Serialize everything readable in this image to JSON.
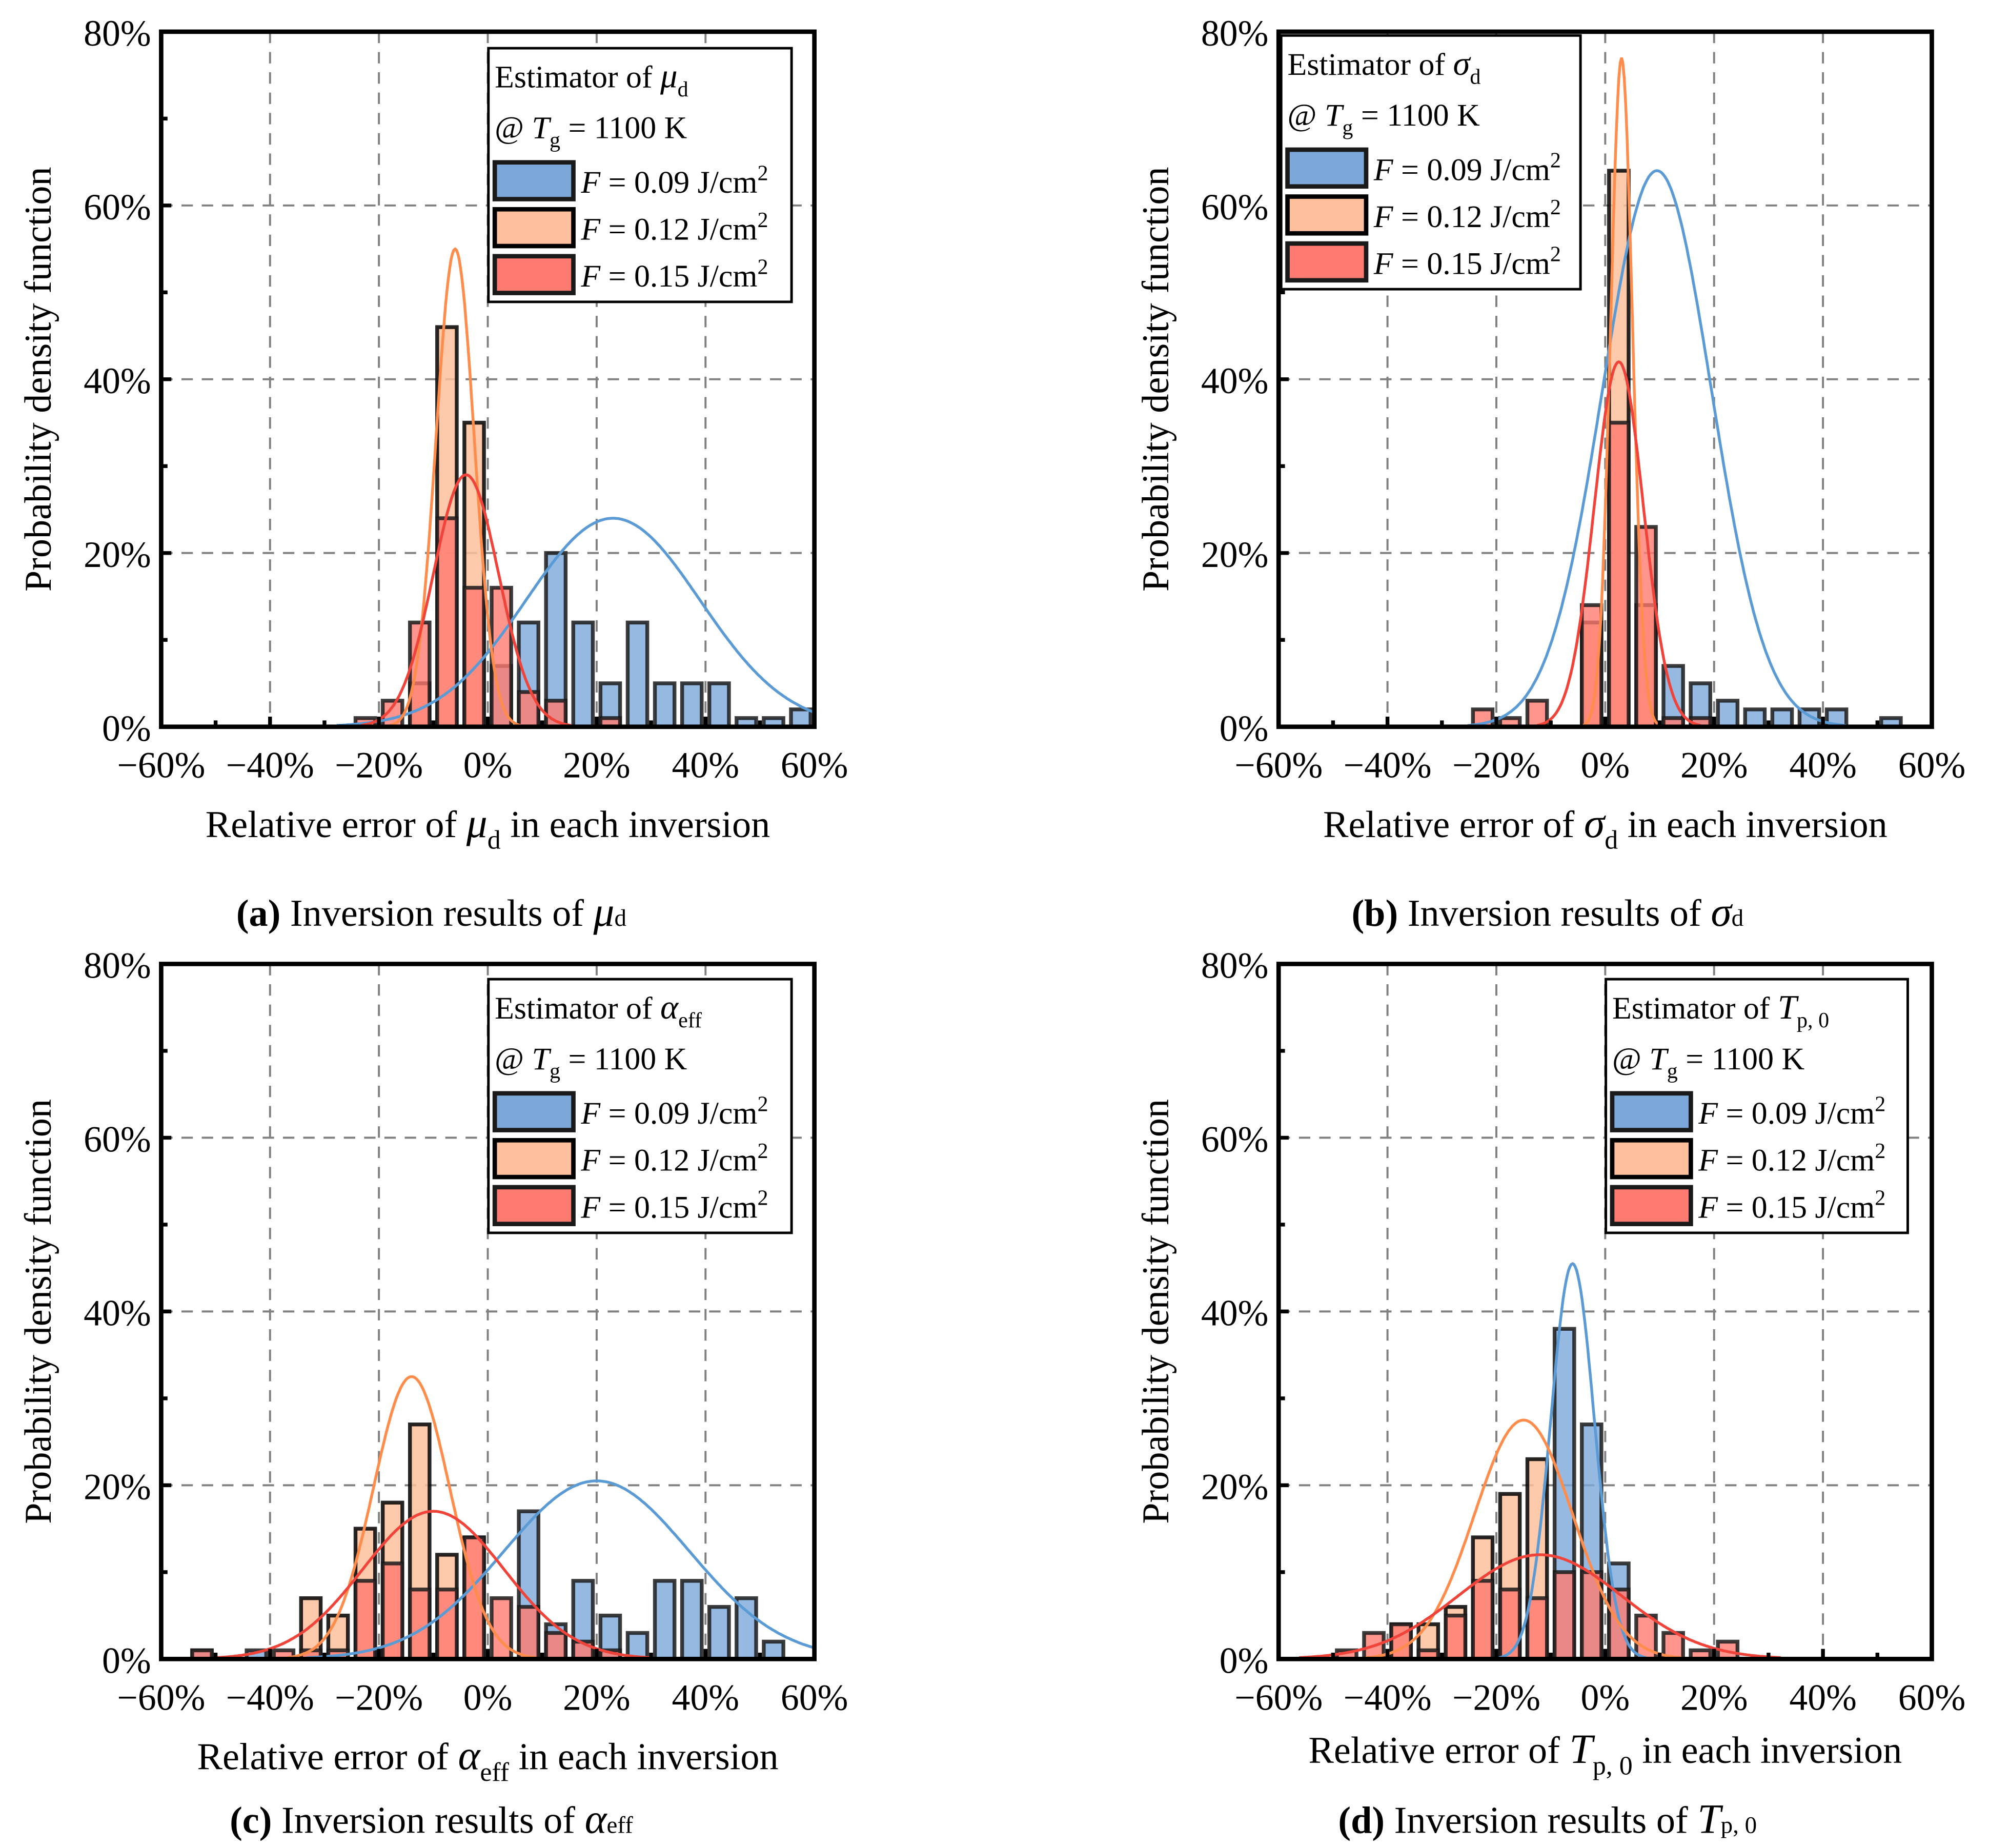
{
  "chart_data": [
    {
      "type": "bar",
      "panel": "a",
      "caption": {
        "letter": "(a)",
        "text": " Inversion results of ",
        "symbol": "μ",
        "sub": "d"
      },
      "legend": {
        "title_pre": "Estimator of ",
        "symbol": "μ",
        "sub": "d",
        "cond_pre": "@ ",
        "cond_sym": "T",
        "cond_sub": "g",
        "cond_post": " = 1100 K",
        "placement": "top-right"
      },
      "xlabel": {
        "pre": "Relative error of ",
        "symbol": "μ",
        "sub": "d",
        "post": " in each inversion"
      },
      "ylabel": "Probability density function",
      "xlim": [
        -60,
        60
      ],
      "ylim": [
        0,
        80
      ],
      "xticks": [
        "−60%",
        "−40%",
        "−20%",
        "0%",
        "20%",
        "40%",
        "60%"
      ],
      "yticks": [
        "0%",
        "20%",
        "40%",
        "60%",
        "80%"
      ],
      "bin_width": 5,
      "series": [
        {
          "name": "F = 0.09 J/cm2",
          "label_sym": "F",
          "label_val": " = 0.09 J/cm",
          "label_sup": "2",
          "color": "#7BA7D9",
          "curve_color": "#5B9BD5",
          "bins": [
            [
              2.5,
              7
            ],
            [
              7.5,
              12
            ],
            [
              12.5,
              20
            ],
            [
              17.5,
              12
            ],
            [
              22.5,
              5
            ],
            [
              27.5,
              12
            ],
            [
              32.5,
              5
            ],
            [
              37.5,
              5
            ],
            [
              42.5,
              5
            ],
            [
              47.5,
              1
            ],
            [
              52.5,
              1
            ],
            [
              57.5,
              2
            ]
          ],
          "fit": {
            "mean": 23,
            "peak": 24,
            "sd": 16
          }
        },
        {
          "name": "F = 0.12 J/cm2",
          "label_sym": "F",
          "label_val": " = 0.12 J/cm",
          "label_sup": "2",
          "color": "#FDBF9C",
          "curve_color": "#FF8C4A",
          "bins": [
            [
              -12.5,
              5
            ],
            [
              -7.5,
              46
            ],
            [
              -2.5,
              35
            ]
          ],
          "fit": {
            "mean": -6,
            "peak": 55,
            "sd": 3.5
          }
        },
        {
          "name": "F = 0.15 J/cm2",
          "label_sym": "F",
          "label_val": " = 0.15 J/cm",
          "label_sup": "2",
          "color": "#FF7A70",
          "curve_color": "#F0433A",
          "bins": [
            [
              -22.5,
              1
            ],
            [
              -17.5,
              3
            ],
            [
              -12.5,
              12
            ],
            [
              -7.5,
              24
            ],
            [
              -2.5,
              16
            ],
            [
              2.5,
              16
            ],
            [
              7.5,
              4
            ],
            [
              12.5,
              3
            ],
            [
              22.5,
              1
            ]
          ],
          "fit": {
            "mean": -4,
            "peak": 29,
            "sd": 6
          }
        }
      ]
    },
    {
      "type": "bar",
      "panel": "b",
      "caption": {
        "letter": "(b)",
        "text": " Inversion results of ",
        "symbol": "σ",
        "sub": "d"
      },
      "legend": {
        "title_pre": "Estimator of ",
        "symbol": "σ",
        "sub": "d",
        "cond_pre": "@ ",
        "cond_sym": "T",
        "cond_sub": "g",
        "cond_post": " = 1100 K",
        "placement": "top-left"
      },
      "xlabel": {
        "pre": "Relative error of ",
        "symbol": "σ",
        "sub": "d",
        "post": " in each inversion"
      },
      "ylabel": "Probability density function",
      "xlim": [
        -60,
        60
      ],
      "ylim": [
        0,
        80
      ],
      "xticks": [
        "−60%",
        "−40%",
        "−20%",
        "0%",
        "20%",
        "40%",
        "60%"
      ],
      "yticks": [
        "0%",
        "20%",
        "40%",
        "60%",
        "80%"
      ],
      "bin_width": 5,
      "series": [
        {
          "name": "F = 0.09 J/cm2",
          "label_sym": "F",
          "label_val": " = 0.09 J/cm",
          "label_sup": "2",
          "color": "#7BA7D9",
          "curve_color": "#5B9BD5",
          "bins": [
            [
              12.5,
              7
            ],
            [
              17.5,
              5
            ],
            [
              22.5,
              3
            ],
            [
              27.5,
              2
            ],
            [
              32.5,
              2
            ],
            [
              37.5,
              2
            ],
            [
              42.5,
              2
            ],
            [
              52.5,
              1
            ]
          ],
          "fit": {
            "mean": 9.5,
            "peak": 64,
            "sd": 10
          }
        },
        {
          "name": "F = 0.12 J/cm2",
          "label_sym": "F",
          "label_val": " = 0.12 J/cm",
          "label_sup": "2",
          "color": "#FDBF9C",
          "curve_color": "#FF8C4A",
          "bins": [
            [
              -2.5,
              12
            ],
            [
              2.5,
              64
            ],
            [
              7.5,
              14
            ]
          ],
          "fit": {
            "mean": 3,
            "peak": 77,
            "sd": 2
          }
        },
        {
          "name": "F = 0.15 J/cm2",
          "label_sym": "F",
          "label_val": " = 0.15 J/cm",
          "label_sup": "2",
          "color": "#FF7A70",
          "curve_color": "#F0433A",
          "bins": [
            [
              -22.5,
              2
            ],
            [
              -17.5,
              1
            ],
            [
              -12.5,
              3
            ],
            [
              -2.5,
              14
            ],
            [
              2.5,
              35
            ],
            [
              7.5,
              23
            ],
            [
              12.5,
              1
            ],
            [
              17.5,
              1
            ]
          ],
          "fit": {
            "mean": 2.5,
            "peak": 42,
            "sd": 4.5
          }
        }
      ]
    },
    {
      "type": "bar",
      "panel": "c",
      "caption": {
        "letter": "(c)",
        "text": " Inversion results of ",
        "symbol": "α",
        "sub": "eff"
      },
      "legend": {
        "title_pre": "Estimator of ",
        "symbol": "α",
        "sub": "eff",
        "cond_pre": "@ ",
        "cond_sym": "T",
        "cond_sub": "g",
        "cond_post": " = 1100 K",
        "placement": "top-right"
      },
      "xlabel": {
        "pre": "Relative error of ",
        "symbol": "α",
        "sub": "eff",
        "post": " in each inversion"
      },
      "ylabel": "Probability density function",
      "xlim": [
        -60,
        60
      ],
      "ylim": [
        0,
        80
      ],
      "xticks": [
        "−60%",
        "−40%",
        "−20%",
        "0%",
        "20%",
        "40%",
        "60%"
      ],
      "yticks": [
        "0%",
        "20%",
        "40%",
        "60%",
        "80%"
      ],
      "bin_width": 5,
      "series": [
        {
          "name": "F = 0.09 J/cm2",
          "label_sym": "F",
          "label_val": " = 0.09 J/cm",
          "label_sup": "2",
          "color": "#7BA7D9",
          "curve_color": "#5B9BD5",
          "bins": [
            [
              -52.5,
              1
            ],
            [
              -42.5,
              1
            ],
            [
              7.5,
              17
            ],
            [
              12.5,
              4
            ],
            [
              17.5,
              9
            ],
            [
              22.5,
              5
            ],
            [
              27.5,
              3
            ],
            [
              32.5,
              9
            ],
            [
              37.5,
              9
            ],
            [
              42.5,
              6
            ],
            [
              47.5,
              7
            ],
            [
              52.5,
              2
            ]
          ],
          "fit": {
            "mean": 20,
            "peak": 20.5,
            "sd": 17
          }
        },
        {
          "name": "F = 0.12 J/cm2",
          "label_sym": "F",
          "label_val": " = 0.12 J/cm",
          "label_sup": "2",
          "color": "#FDBF9C",
          "curve_color": "#FF8C4A",
          "bins": [
            [
              -32.5,
              7
            ],
            [
              -27.5,
              5
            ],
            [
              -22.5,
              15
            ],
            [
              -17.5,
              18
            ],
            [
              -12.5,
              27
            ],
            [
              -7.5,
              12
            ],
            [
              -2.5,
              14
            ]
          ],
          "fit": {
            "mean": -14,
            "peak": 32.5,
            "sd": 7
          }
        },
        {
          "name": "F = 0.15 J/cm2",
          "label_sym": "F",
          "label_val": " = 0.15 J/cm",
          "label_sup": "2",
          "color": "#FF7A70",
          "curve_color": "#F0433A",
          "bins": [
            [
              -52.5,
              1
            ],
            [
              -37.5,
              1
            ],
            [
              -32.5,
              1
            ],
            [
              -27.5,
              1
            ],
            [
              -22.5,
              9
            ],
            [
              -17.5,
              11
            ],
            [
              -12.5,
              8
            ],
            [
              -7.5,
              8
            ],
            [
              -2.5,
              14
            ],
            [
              2.5,
              7
            ],
            [
              7.5,
              6
            ],
            [
              12.5,
              3
            ],
            [
              17.5,
              2
            ],
            [
              22.5,
              1
            ]
          ],
          "fit": {
            "mean": -10,
            "peak": 17,
            "sd": 13
          }
        }
      ]
    },
    {
      "type": "bar",
      "panel": "d",
      "caption": {
        "letter": "(d)",
        "text": " Inversion results of ",
        "symbol": "T",
        "sub": "p, 0"
      },
      "legend": {
        "title_pre": "Estimator of ",
        "symbol": "T",
        "sub": "p, 0",
        "cond_pre": "@ ",
        "cond_sym": "T",
        "cond_sub": "g",
        "cond_post": " = 1100 K",
        "placement": "top-right"
      },
      "xlabel": {
        "pre": "Relative error of ",
        "symbol": "T",
        "sub": "p, 0",
        "post": " in each inversion"
      },
      "ylabel": "Probability density function",
      "xlim": [
        -60,
        60
      ],
      "ylim": [
        0,
        80
      ],
      "xticks": [
        "−60%",
        "−40%",
        "−20%",
        "0%",
        "20%",
        "40%",
        "60%"
      ],
      "yticks": [
        "0%",
        "20%",
        "40%",
        "60%",
        "80%"
      ],
      "bin_width": 5,
      "series": [
        {
          "name": "F = 0.09 J/cm2",
          "label_sym": "F",
          "label_val": " = 0.09 J/cm",
          "label_sup": "2",
          "color": "#7BA7D9",
          "curve_color": "#5B9BD5",
          "bins": [
            [
              -7.5,
              38
            ],
            [
              -2.5,
              27
            ],
            [
              2.5,
              11
            ]
          ],
          "fit": {
            "mean": -6,
            "peak": 45.5,
            "sd": 4
          }
        },
        {
          "name": "F = 0.12 J/cm2",
          "label_sym": "F",
          "label_val": " = 0.12 J/cm",
          "label_sup": "2",
          "color": "#FDBF9C",
          "curve_color": "#FF8C4A",
          "bins": [
            [
              -37.5,
              4
            ],
            [
              -32.5,
              4
            ],
            [
              -27.5,
              6
            ],
            [
              -22.5,
              14
            ],
            [
              -17.5,
              19
            ],
            [
              -12.5,
              23
            ]
          ],
          "fit": {
            "mean": -15,
            "peak": 27.5,
            "sd": 9
          }
        },
        {
          "name": "F = 0.15 J/cm2",
          "label_sym": "F",
          "label_val": " = 0.15 J/cm",
          "label_sup": "2",
          "color": "#FF7A70",
          "curve_color": "#F0433A",
          "bins": [
            [
              -47.5,
              1
            ],
            [
              -42.5,
              3
            ],
            [
              -37.5,
              4
            ],
            [
              -32.5,
              1
            ],
            [
              -27.5,
              5
            ],
            [
              -22.5,
              9
            ],
            [
              -17.5,
              8
            ],
            [
              -12.5,
              7
            ],
            [
              -7.5,
              10
            ],
            [
              -2.5,
              10
            ],
            [
              2.5,
              8
            ],
            [
              7.5,
              5
            ],
            [
              12.5,
              3
            ],
            [
              17.5,
              1
            ],
            [
              22.5,
              2
            ]
          ],
          "fit": {
            "mean": -12,
            "peak": 12,
            "sd": 15
          }
        }
      ]
    }
  ]
}
